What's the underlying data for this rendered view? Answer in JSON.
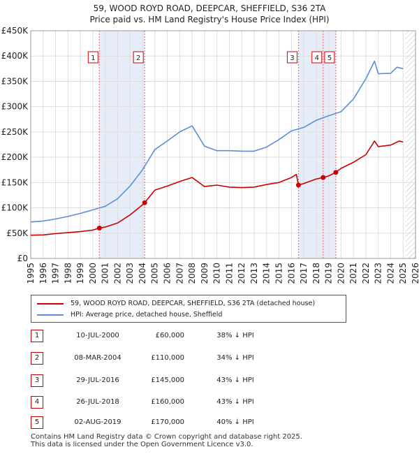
{
  "chart_data": {
    "type": "line",
    "title": "59, WOOD ROYD ROAD, DEEPCAR, SHEFFIELD, S36 2TA",
    "subtitle": "Price paid vs. HM Land Registry's House Price Index (HPI)",
    "xlim": [
      1995,
      2026
    ],
    "ylim": [
      0,
      450000
    ],
    "x_ticks": [
      "1995",
      "1996",
      "1997",
      "1998",
      "1999",
      "2000",
      "2001",
      "2002",
      "2003",
      "2004",
      "2005",
      "2006",
      "2007",
      "2008",
      "2009",
      "2010",
      "2011",
      "2012",
      "2013",
      "2014",
      "2015",
      "2016",
      "2017",
      "2018",
      "2019",
      "2020",
      "2021",
      "2022",
      "2023",
      "2024",
      "2025",
      "2026"
    ],
    "y_ticks": [
      {
        "value": 0,
        "label": "£0"
      },
      {
        "value": 50000,
        "label": "£50K"
      },
      {
        "value": 100000,
        "label": "£100K"
      },
      {
        "value": 150000,
        "label": "£150K"
      },
      {
        "value": 200000,
        "label": "£200K"
      },
      {
        "value": 250000,
        "label": "£250K"
      },
      {
        "value": 300000,
        "label": "£300K"
      },
      {
        "value": 350000,
        "label": "£350K"
      },
      {
        "value": 400000,
        "label": "£400K"
      },
      {
        "value": 450000,
        "label": "£450K"
      }
    ],
    "grid": true,
    "series": [
      {
        "name": "59, WOOD ROYD ROAD, DEEPCAR, SHEFFIELD, S36 2TA (detached house)",
        "color": "#cc0000",
        "x": [
          1995,
          1996,
          1997,
          1998,
          1999,
          2000,
          2000.53,
          2001,
          2002,
          2003,
          2004,
          2004.18,
          2005,
          2006,
          2007,
          2008,
          2009,
          2010,
          2011,
          2012,
          2013,
          2014,
          2015,
          2016,
          2016.4,
          2016.57,
          2017,
          2018,
          2018.56,
          2019,
          2019.58,
          2020,
          2021,
          2022,
          2022.7,
          2023,
          2024,
          2024.7,
          2025
        ],
        "values": [
          46000,
          46500,
          49000,
          51000,
          53000,
          56000,
          60000,
          62000,
          70000,
          86000,
          106000,
          110000,
          135000,
          143000,
          152000,
          160000,
          142000,
          145000,
          141000,
          140000,
          141000,
          146000,
          150000,
          160000,
          166000,
          145000,
          148000,
          157000,
          160000,
          163000,
          170000,
          178000,
          190000,
          205000,
          232000,
          221000,
          224000,
          232000,
          230000
        ]
      },
      {
        "name": "HPI: Average price, detached house, Sheffield",
        "color": "#5b8ed6",
        "x": [
          1995,
          1996,
          1997,
          1998,
          1999,
          2000,
          2001,
          2002,
          2003,
          2004,
          2005,
          2006,
          2007,
          2008,
          2009,
          2010,
          2011,
          2012,
          2013,
          2014,
          2015,
          2016,
          2017,
          2018,
          2019,
          2020,
          2021,
          2022,
          2022.7,
          2023,
          2024,
          2024.5,
          2025
        ],
        "values": [
          72000,
          74000,
          78000,
          83000,
          89000,
          96000,
          103000,
          118000,
          143000,
          175000,
          215000,
          232000,
          250000,
          262000,
          222000,
          213000,
          213000,
          212000,
          212000,
          220000,
          235000,
          252000,
          259000,
          273000,
          282000,
          290000,
          315000,
          355000,
          390000,
          365000,
          366000,
          378000,
          375000
        ]
      }
    ],
    "markers": [
      {
        "label": "1",
        "x": 2000.53,
        "y": 60000
      },
      {
        "label": "2",
        "x": 2004.18,
        "y": 110000
      },
      {
        "label": "3",
        "x": 2016.57,
        "y": 145000
      },
      {
        "label": "4",
        "x": 2018.56,
        "y": 160000
      },
      {
        "label": "5",
        "x": 2019.58,
        "y": 170000
      }
    ],
    "shaded_periods": [
      [
        2000.53,
        2004.18
      ],
      [
        2016.57,
        2019.58
      ]
    ],
    "future_from": 2025.2
  },
  "legend": {
    "property_label": "59, WOOD ROYD ROAD, DEEPCAR, SHEFFIELD, S36 2TA (detached house)",
    "hpi_label": "HPI: Average price, detached house, Sheffield",
    "property_color": "#cc0000",
    "hpi_color": "#5b8ed6"
  },
  "sales": [
    {
      "num": "1",
      "date": "10-JUL-2000",
      "price": "£60,000",
      "hpi": "38% ↓ HPI"
    },
    {
      "num": "2",
      "date": "08-MAR-2004",
      "price": "£110,000",
      "hpi": "34% ↓ HPI"
    },
    {
      "num": "3",
      "date": "29-JUL-2016",
      "price": "£145,000",
      "hpi": "43% ↓ HPI"
    },
    {
      "num": "4",
      "date": "26-JUL-2018",
      "price": "£160,000",
      "hpi": "43% ↓ HPI"
    },
    {
      "num": "5",
      "date": "02-AUG-2019",
      "price": "£170,000",
      "hpi": "40% ↓ HPI"
    }
  ],
  "footer": {
    "line1": "Contains HM Land Registry data © Crown copyright and database right 2025.",
    "line2": "This data is licensed under the Open Government Licence v3.0."
  }
}
